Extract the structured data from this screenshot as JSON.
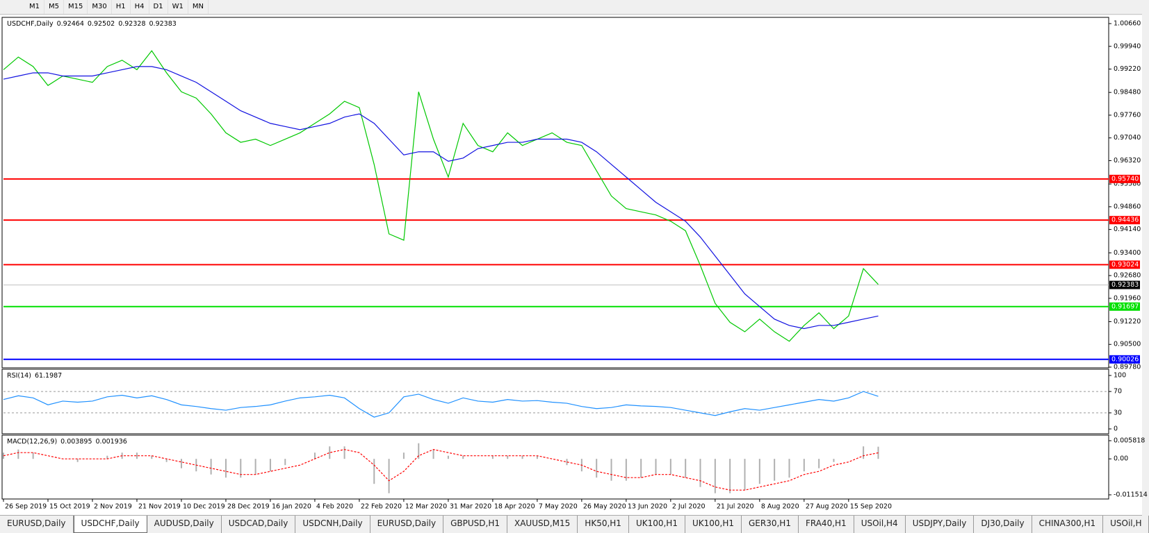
{
  "toolbar": {
    "timeframes": [
      "M1",
      "M5",
      "M15",
      "M30",
      "H1",
      "H4",
      "D1",
      "W1",
      "MN"
    ]
  },
  "chart_data": [
    {
      "type": "line",
      "title": "USDCHF,Daily",
      "ohlc": [
        0.92464,
        0.92502,
        0.92328,
        0.92383
      ],
      "categories": [
        "26 Sep 2019",
        null,
        null,
        "15 Oct 2019",
        null,
        null,
        "2 Nov 2019",
        null,
        null,
        "21 Nov 2019",
        null,
        null,
        "10 Dec 2019",
        null,
        null,
        "28 Dec 2019",
        null,
        null,
        "16 Jan 2020",
        null,
        null,
        "4 Feb 2020",
        null,
        null,
        "22 Feb 2020",
        null,
        null,
        "12 Mar 2020",
        null,
        null,
        "31 Mar 2020",
        null,
        null,
        "18 Apr 2020",
        null,
        null,
        "7 May 2020",
        null,
        null,
        "26 May 2020",
        null,
        null,
        "13 Jun 2020",
        null,
        null,
        "2 Jul 2020",
        null,
        null,
        "21 Jul 2020",
        null,
        null,
        "8 Aug 2020",
        null,
        null,
        "27 Aug 2020",
        null,
        null,
        "15 Sep 2020",
        null,
        null
      ],
      "series": [
        {
          "color": "#00c800",
          "values": [
            0.992,
            0.996,
            0.993,
            0.987,
            0.99,
            0.989,
            0.988,
            0.993,
            0.995,
            0.992,
            0.998,
            0.991,
            0.985,
            0.983,
            0.978,
            0.972,
            0.969,
            0.97,
            0.968,
            0.97,
            0.972,
            0.975,
            0.978,
            0.982,
            0.98,
            0.962,
            0.94,
            0.938,
            0.985,
            0.97,
            0.958,
            0.975,
            0.968,
            0.966,
            0.972,
            0.968,
            0.97,
            0.972,
            0.969,
            0.968,
            0.96,
            0.952,
            0.948,
            0.947,
            0.946,
            0.944,
            0.941,
            0.93,
            0.918,
            0.912,
            0.909,
            0.913,
            0.909,
            0.906,
            0.911,
            0.915,
            0.91,
            0.914,
            0.929,
            0.924
          ]
        },
        {
          "color": "#1010e0",
          "values": [
            0.989,
            0.99,
            0.991,
            0.991,
            0.99,
            0.99,
            0.99,
            0.991,
            0.992,
            0.993,
            0.993,
            0.992,
            0.99,
            0.988,
            0.985,
            0.982,
            0.979,
            0.977,
            0.975,
            0.974,
            0.973,
            0.974,
            0.975,
            0.977,
            0.978,
            0.975,
            0.97,
            0.965,
            0.966,
            0.966,
            0.963,
            0.964,
            0.967,
            0.968,
            0.969,
            0.969,
            0.97,
            0.97,
            0.97,
            0.969,
            0.966,
            0.962,
            0.958,
            0.954,
            0.95,
            0.947,
            0.944,
            0.939,
            0.933,
            0.927,
            0.921,
            0.917,
            0.913,
            0.911,
            0.91,
            0.911,
            0.911,
            0.912,
            0.913,
            0.914
          ]
        }
      ],
      "ylim": [
        0.8978,
        1.0066
      ],
      "yticks": [
        {
          "value": 1.0066,
          "label": "1.00660"
        },
        {
          "value": 0.9994,
          "label": "0.99940"
        },
        {
          "value": 0.9922,
          "label": "0.99220"
        },
        {
          "value": 0.9848,
          "label": "0.98480"
        },
        {
          "value": 0.9776,
          "label": "0.97760"
        },
        {
          "value": 0.9704,
          "label": "0.97040"
        },
        {
          "value": 0.9632,
          "label": "0.96320"
        },
        {
          "value": 0.9558,
          "label": "0.95580"
        },
        {
          "value": 0.9486,
          "label": "0.94860"
        },
        {
          "value": 0.9414,
          "label": "0.94140"
        },
        {
          "value": 0.934,
          "label": "0.93400"
        },
        {
          "value": 0.9268,
          "label": "0.92680"
        },
        {
          "value": 0.9196,
          "label": "0.91960"
        },
        {
          "value": 0.9122,
          "label": "0.91220"
        },
        {
          "value": 0.905,
          "label": "0.90500"
        },
        {
          "value": 0.8978,
          "label": "0.89780"
        }
      ],
      "levels": [
        {
          "value": 0.9574,
          "label": "0.95740",
          "color": "#ff0000"
        },
        {
          "value": 0.94436,
          "label": "0.94436",
          "color": "#ff0000"
        },
        {
          "value": 0.93024,
          "label": "0.93024",
          "color": "#ff0000"
        },
        {
          "value": 0.91697,
          "label": "0.91697",
          "color": "#00e000"
        },
        {
          "value": 0.90026,
          "label": "0.90026",
          "color": "#0000ff"
        }
      ],
      "last": {
        "value": 0.92383,
        "label": "0.92383"
      }
    },
    {
      "type": "line",
      "title": "RSI(14)",
      "current": 61.1987,
      "series": [
        {
          "color": "#1e90ff",
          "values": [
            55,
            62,
            58,
            45,
            52,
            50,
            52,
            60,
            63,
            58,
            62,
            55,
            45,
            42,
            38,
            35,
            40,
            42,
            45,
            52,
            58,
            60,
            63,
            58,
            38,
            22,
            30,
            60,
            65,
            55,
            48,
            58,
            52,
            50,
            55,
            52,
            53,
            50,
            48,
            42,
            38,
            40,
            45,
            43,
            42,
            40,
            35,
            30,
            25,
            32,
            38,
            35,
            40,
            45,
            50,
            55,
            52,
            58,
            70,
            61
          ]
        }
      ],
      "ylim": [
        0,
        100
      ],
      "yticks": [
        100,
        70,
        30,
        0
      ],
      "levels": [
        70,
        30
      ]
    },
    {
      "type": "bar",
      "title": "MACD(12,26,9)",
      "current": [
        0.003895,
        0.001936
      ],
      "series": [
        {
          "color": "#b0b0b0",
          "values": [
            0.002,
            0.003,
            0.002,
            0.0,
            0.0,
            -0.001,
            0.0,
            0.001,
            0.002,
            0.002,
            0.001,
            -0.001,
            -0.003,
            -0.004,
            -0.005,
            -0.006,
            -0.006,
            -0.005,
            -0.004,
            -0.002,
            0.0,
            0.002,
            0.004,
            0.004,
            0.0,
            -0.008,
            -0.011,
            0.002,
            0.005,
            0.003,
            0.001,
            0.001,
            0.0,
            0.001,
            0.001,
            0.001,
            0.001,
            0.0,
            -0.002,
            -0.004,
            -0.006,
            -0.007,
            -0.007,
            -0.006,
            -0.005,
            -0.005,
            -0.006,
            -0.009,
            -0.011,
            -0.011,
            -0.01,
            -0.008,
            -0.007,
            -0.006,
            -0.004,
            -0.003,
            -0.001,
            0.0,
            0.004,
            0.0039
          ]
        },
        {
          "color": "#ff0000",
          "values": [
            0.001,
            0.002,
            0.002,
            0.001,
            0.0,
            0.0,
            0.0,
            0.0,
            0.001,
            0.001,
            0.001,
            0.0,
            -0.001,
            -0.002,
            -0.003,
            -0.004,
            -0.005,
            -0.005,
            -0.004,
            -0.003,
            -0.002,
            0.0,
            0.002,
            0.003,
            0.002,
            -0.002,
            -0.007,
            -0.004,
            0.001,
            0.003,
            0.002,
            0.001,
            0.001,
            0.001,
            0.001,
            0.001,
            0.001,
            0.0,
            -0.001,
            -0.002,
            -0.004,
            -0.005,
            -0.006,
            -0.006,
            -0.005,
            -0.005,
            -0.006,
            -0.007,
            -0.009,
            -0.01,
            -0.01,
            -0.009,
            -0.008,
            -0.007,
            -0.005,
            -0.004,
            -0.002,
            -0.001,
            0.001,
            0.001936
          ]
        }
      ],
      "ylim": [
        -0.011514,
        0.005818
      ],
      "yticks": [
        0.005818,
        {
          "value": 0,
          "label": "0.00"
        },
        -0.011514
      ]
    }
  ],
  "tabs": [
    "EURUSD,Daily",
    "USDCHF,Daily",
    "AUDUSD,Daily",
    "USDCAD,Daily",
    "USDCNH,Daily",
    "EURUSD,Daily",
    "GBPUSD,H1",
    "XAUUSD,M15",
    "HK50,H1",
    "UK100,H1",
    "UK100,H1",
    "GER30,H1",
    "FRA40,H1",
    "USOil,H4",
    "USDJPY,Daily",
    "DJ30,Daily",
    "CHINA300,H1",
    "USOil,H"
  ],
  "active_tab": 1
}
